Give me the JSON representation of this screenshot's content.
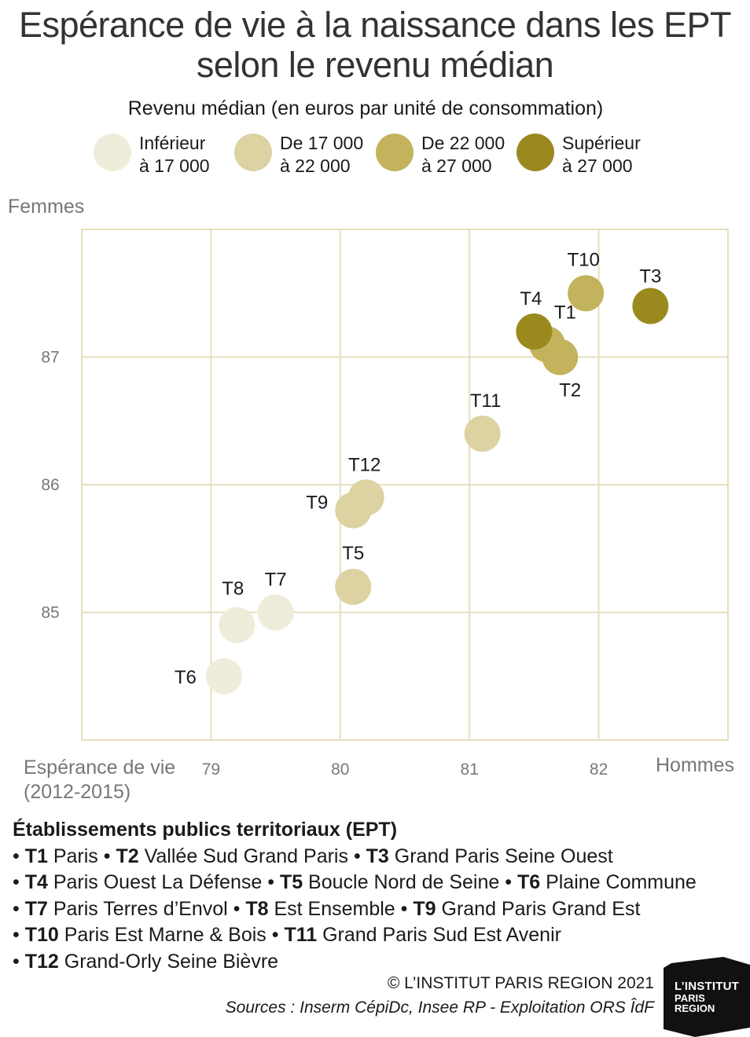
{
  "title_lines": [
    "Espérance de vie à la naissance dans les EPT",
    "selon le revenu médian"
  ],
  "legend": {
    "title": "Revenu médian (en euros par unité de consommation)",
    "items": [
      {
        "line1": "Inférieur",
        "line2": "à 17 000",
        "color": "#f0ecdc"
      },
      {
        "line1": "De 17 000",
        "line2": "à 22 000",
        "color": "#dcd2a2"
      },
      {
        "line1": "De 22 000",
        "line2": "à 27 000",
        "color": "#c2b35c"
      },
      {
        "line1": "Supérieur",
        "line2": "à 27 000",
        "color": "#9a8a1e"
      }
    ]
  },
  "chart_data": {
    "type": "scatter",
    "ylabel": "Femmes",
    "xlabel": "Hommes",
    "x_note_lines": [
      "Espérance de vie",
      "(2012-2015)"
    ],
    "xlim": [
      78,
      83
    ],
    "ylim": [
      84,
      88
    ],
    "xticks": [
      79,
      80,
      81,
      82
    ],
    "yticks": [
      85,
      86,
      87
    ],
    "grid": true,
    "gridColor": "#e6dfbf",
    "points": [
      {
        "label": "T1",
        "x": 81.6,
        "y": 87.1,
        "category": 2
      },
      {
        "label": "T2",
        "x": 81.7,
        "y": 87.0,
        "category": 2
      },
      {
        "label": "T3",
        "x": 82.4,
        "y": 87.4,
        "category": 3
      },
      {
        "label": "T4",
        "x": 81.5,
        "y": 87.2,
        "category": 3
      },
      {
        "label": "T5",
        "x": 80.1,
        "y": 85.2,
        "category": 1
      },
      {
        "label": "T6",
        "x": 79.1,
        "y": 84.5,
        "category": 0
      },
      {
        "label": "T7",
        "x": 79.5,
        "y": 85.0,
        "category": 0
      },
      {
        "label": "T8",
        "x": 79.2,
        "y": 84.9,
        "category": 0
      },
      {
        "label": "T9",
        "x": 80.1,
        "y": 85.8,
        "category": 1
      },
      {
        "label": "T10",
        "x": 81.9,
        "y": 87.5,
        "category": 2
      },
      {
        "label": "T11",
        "x": 81.1,
        "y": 86.4,
        "category": 1
      },
      {
        "label": "T12",
        "x": 80.2,
        "y": 85.9,
        "category": 1
      }
    ]
  },
  "ept": {
    "heading": "Établissements publics territoriaux (EPT)",
    "lines": [
      [
        {
          "code": "T1",
          "name": "Paris"
        },
        {
          "code": "T2",
          "name": "Vallée Sud Grand Paris"
        },
        {
          "code": "T3",
          "name": "Grand Paris Seine Ouest"
        }
      ],
      [
        {
          "code": "T4",
          "name": "Paris Ouest La Défense"
        },
        {
          "code": "T5",
          "name": "Boucle Nord de Seine"
        },
        {
          "code": "T6",
          "name": "Plaine Commune"
        }
      ],
      [
        {
          "code": "T7",
          "name": "Paris Terres d’Envol"
        },
        {
          "code": "T8",
          "name": "Est Ensemble"
        },
        {
          "code": "T9",
          "name": "Grand Paris Grand Est"
        }
      ],
      [
        {
          "code": "T10",
          "name": "Paris Est Marne & Bois"
        },
        {
          "code": "T11",
          "name": "Grand Paris Sud Est Avenir"
        }
      ],
      [
        {
          "code": "T12",
          "name": "Grand-Orly Seine Bièvre"
        }
      ]
    ]
  },
  "footer": {
    "credit": "© L’INSTITUT PARIS REGION 2021",
    "sources": "Sources : Inserm CépiDc, Insee RP - Exploitation ORS ÎdF"
  },
  "logo": {
    "line1": "L’INSTITUT",
    "line2": "PARIS",
    "line3": "REGION",
    "color": "#111111"
  }
}
